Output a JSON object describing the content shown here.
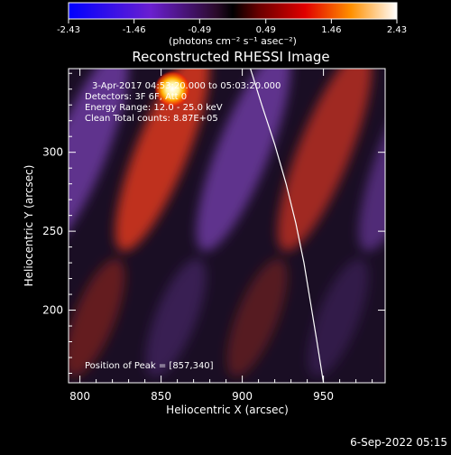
{
  "chart_data": {
    "type": "heatmap",
    "title": "Reconstructed RHESSI Image",
    "xlabel": "Heliocentric X (arcsec)",
    "ylabel": "Heliocentric Y (arcsec)",
    "xlim": [
      793,
      988
    ],
    "ylim": [
      154,
      353
    ],
    "x_ticks": [
      800,
      850,
      900,
      950
    ],
    "y_ticks": [
      200,
      250,
      300
    ],
    "grid": false,
    "colorbar": {
      "position": "top",
      "range": [
        -2.43,
        2.43
      ],
      "tick_values": [
        -2.43,
        -1.46,
        -0.49,
        0.49,
        1.46,
        2.43
      ],
      "tick_labels": [
        "-2.43",
        "-1.46",
        "-0.49",
        "0.49",
        "1.46",
        "2.43"
      ],
      "unit_label": "(photons cm⁻² s⁻¹ asec⁻²)"
    },
    "annotations": {
      "time_range": "3-Apr-2017 04:53:20.000 to 05:03:20.000",
      "detectors": "Detectors: 3F 6F, Att 0",
      "energy_range": "Energy Range: 12.0 - 25.0 keV",
      "clean_counts": "Clean    Total counts: 8.87E+05",
      "peak_position": "Position of Peak = [857,340]"
    },
    "peak": {
      "x": 857,
      "y": 340,
      "value": 2.43
    },
    "limb_curve": [
      [
        905,
        353
      ],
      [
        912,
        330
      ],
      [
        920,
        305
      ],
      [
        927,
        280
      ],
      [
        933,
        255
      ],
      [
        938,
        230
      ],
      [
        942,
        205
      ],
      [
        946,
        180
      ],
      [
        950,
        154
      ]
    ],
    "fringes": {
      "wavelength_arcsec": 50,
      "angle_deg": 22,
      "positive_color": "#c8321e",
      "negative_color": "#6a3a9e"
    },
    "timestamp": "6-Sep-2022 05:15"
  }
}
